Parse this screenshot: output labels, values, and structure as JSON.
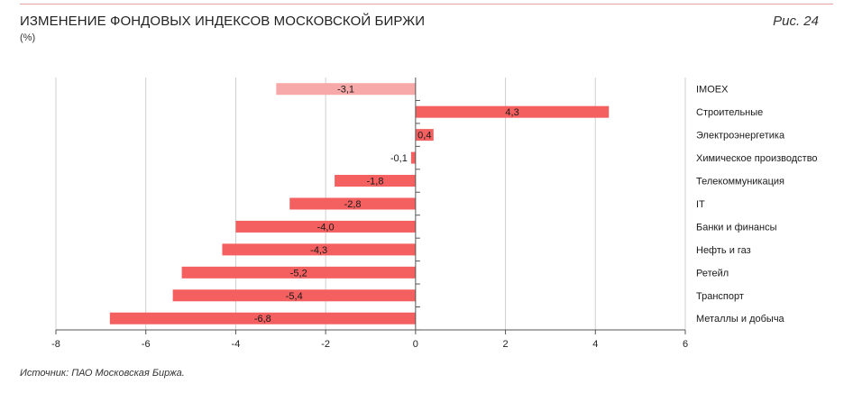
{
  "header": {
    "title": "ИЗМЕНЕНИЕ ФОНДОВЫХ ИНДЕКСОВ МОСКОВСКОЙ БИРЖИ",
    "unit": "(%)",
    "figure_label": "Рис. 24"
  },
  "footer": {
    "source": "Источник: ПАО Московская Биржа."
  },
  "colors": {
    "highlight_bar": "#f7a8a8",
    "bar": "#f45f5f",
    "grid": "#cfcfcf",
    "axis": "#555555"
  },
  "chart_data": {
    "type": "bar",
    "orientation": "horizontal",
    "categories": [
      "IMOEX",
      "Строительные",
      "Электроэнергетика",
      "Химическое производство",
      "Телекоммуникация",
      "IT",
      "Банки и финансы",
      "Нефть и газ",
      "Ретейл",
      "Транспорт",
      "Металлы и добыча"
    ],
    "values": [
      -3.1,
      4.3,
      0.4,
      -0.1,
      -1.8,
      -2.8,
      -4.0,
      -4.3,
      -5.2,
      -5.4,
      -6.8
    ],
    "value_labels": [
      "-3,1",
      "4,3",
      "0,4",
      "-0,1",
      "-1,8",
      "-2,8",
      "-4,0",
      "-4,3",
      "-5,2",
      "-5,4",
      "-6,8"
    ],
    "highlight_index": 0,
    "xlim": [
      -8,
      6
    ],
    "xticks": [
      -8,
      -6,
      -4,
      -2,
      0,
      2,
      4,
      6
    ],
    "xtick_labels": [
      "-8",
      "-6",
      "-4",
      "-2",
      "0",
      "2",
      "4",
      "6"
    ],
    "grid": "vertical",
    "category_labels_position": "right"
  }
}
